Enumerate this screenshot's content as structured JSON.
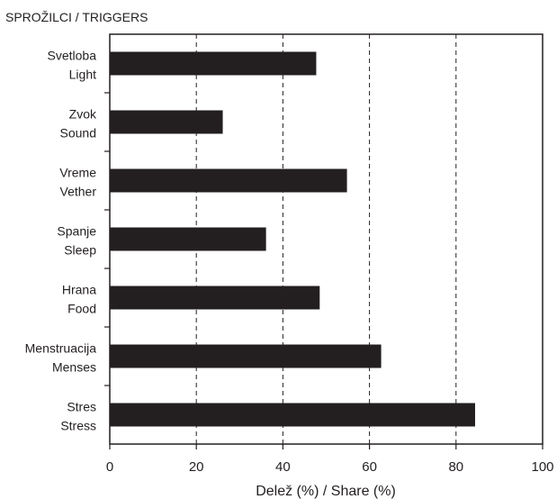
{
  "chart_data": {
    "type": "bar",
    "orientation": "horizontal",
    "title": "SPROŽILCI / TRIGGERS",
    "xlabel": "Delež (%) / Share (%)",
    "ylabel": "",
    "xlim": [
      0,
      100
    ],
    "xticks": [
      "0",
      "20",
      "40",
      "60",
      "80",
      "100"
    ],
    "grid": "vertical dashed at 20, 40, 60, 80",
    "categories": [
      [
        "Svetloba",
        "Light"
      ],
      [
        "Zvok",
        "Sound"
      ],
      [
        "Vreme",
        "Vether"
      ],
      [
        "Spanje",
        "Sleep"
      ],
      [
        "Hrana",
        "Food"
      ],
      [
        "Menstruacija",
        "Menses"
      ],
      [
        "Stres",
        "Stress"
      ]
    ],
    "values": [
      47.7,
      26.1,
      54.8,
      36.1,
      48.5,
      62.7,
      84.4
    ],
    "bar_color": "#231f20"
  }
}
